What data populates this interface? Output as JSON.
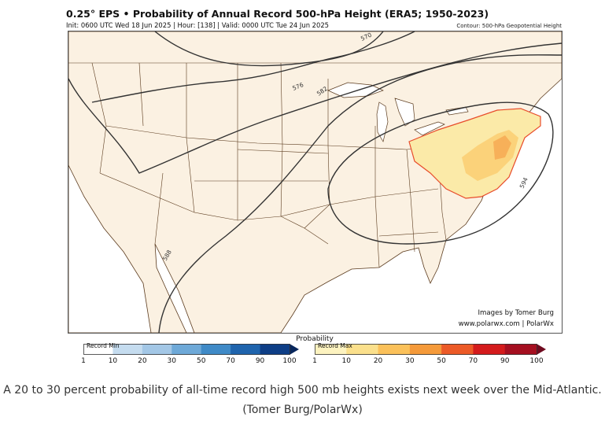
{
  "figure": {
    "title": "0.25° EPS • Probability of Annual Record 500-hPa Height (ERA5; 1950-2023)",
    "subtitle": "Init: 0600 UTC Wed 18 Jun 2025 | Hour: [138] | Valid: 0000 UTC Tue 24 Jun 2025",
    "contour_note": "Contour: 500-hPa Geopotential Height",
    "credit_line1": "Images by Tomer Burg",
    "credit_line2": "www.polarwx.com | PolarWx",
    "contour_labels": [
      "570",
      "576",
      "582",
      "588",
      "594"
    ]
  },
  "legend": {
    "title": "Probability",
    "min_label": "Record Min",
    "max_label": "Record Max",
    "min_ticks": [
      "1",
      "10",
      "20",
      "30",
      "50",
      "70",
      "90",
      "100"
    ],
    "max_ticks": [
      "1",
      "10",
      "20",
      "30",
      "50",
      "70",
      "90",
      "100"
    ],
    "min_colors": [
      "#ffffff",
      "#c5dcef",
      "#a3c7e6",
      "#6ea9d8",
      "#3f8ac7",
      "#1f64ad",
      "#0e3e86",
      "#08265c"
    ],
    "max_colors": [
      "#fdf3c0",
      "#fbe08c",
      "#fbc15a",
      "#f59a3a",
      "#ec5a27",
      "#d41b1c",
      "#a50f20",
      "#6f0a1f"
    ]
  },
  "caption": "A 20 to 30 percent probability of all-time record high 500 mb heights exists next week over the Mid-Atlantic. (Tomer Burg/PolarWx)"
}
